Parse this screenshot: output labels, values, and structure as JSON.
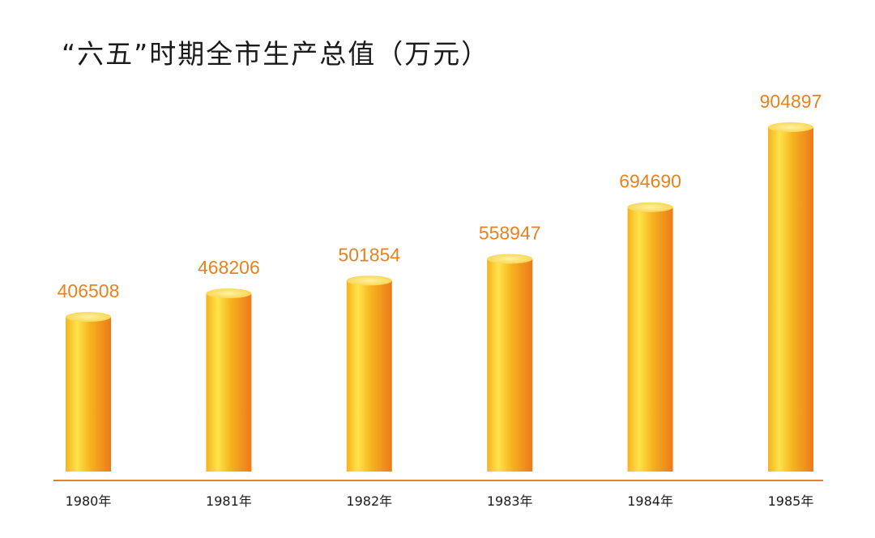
{
  "chart_data": {
    "type": "bar",
    "title": "“六五”时期全市生产总值（万元）",
    "categories": [
      "1980年",
      "1981年",
      "1982年",
      "1983年",
      "1984年",
      "1985年"
    ],
    "values": [
      406508,
      468206,
      501854,
      558947,
      694690,
      904897
    ],
    "value_labels": [
      "406508",
      "468206",
      "501854",
      "558947",
      "694690",
      "904897"
    ],
    "ylim": [
      0,
      904897
    ],
    "grid": false,
    "legend": "none",
    "bar_style": "cylinder"
  },
  "colors": {
    "value_label": "#e8821e",
    "baseline": "#e8821e",
    "bar_light": "#ffe34a",
    "bar_mid": "#f5b21e",
    "bar_dark": "#ec7a1c",
    "bar_top": "#f8d24a"
  }
}
